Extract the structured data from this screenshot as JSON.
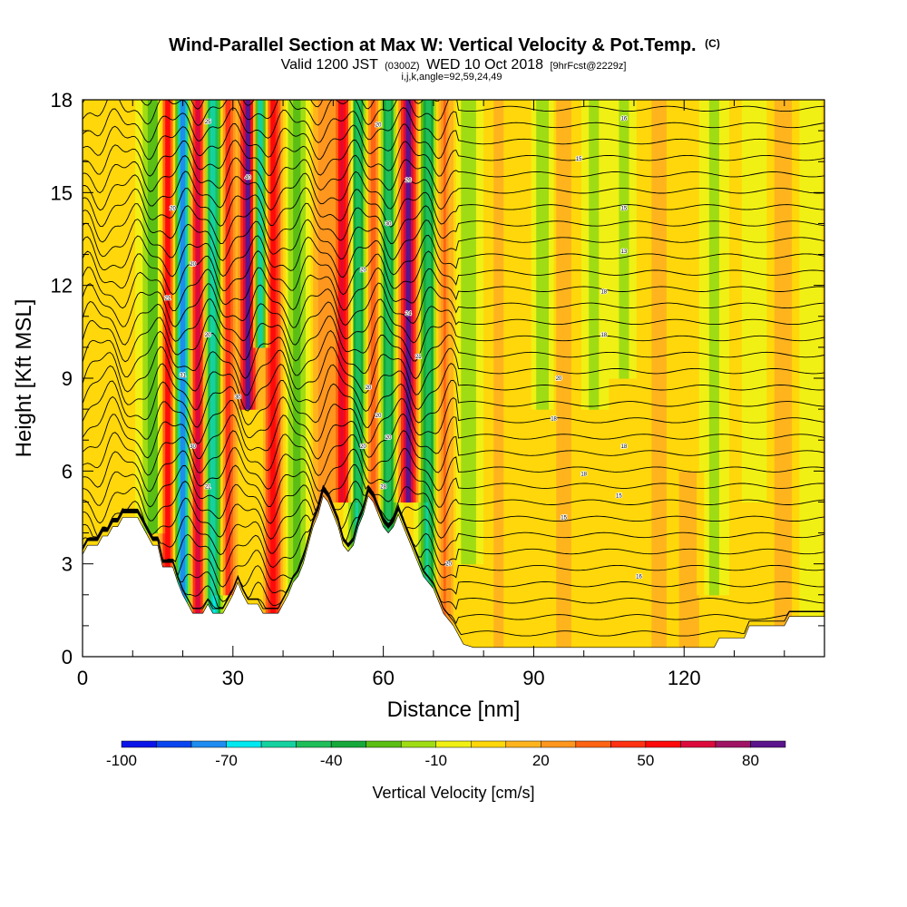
{
  "chart_data": {
    "type": "heatmap",
    "title": "Wind-Parallel Section at Max W: Vertical Velocity & Pot.Temp.",
    "title_mark": "(C)",
    "subtitle": {
      "prefix": "Valid 1200 JST",
      "zulu": "(0300Z)",
      "date": "WED 10 Oct 2018",
      "forecast": "[9hrFcst@2229z]"
    },
    "subtitle2": "i,j,k,angle=92,59,24,49",
    "xlabel": "Distance [nm]",
    "ylabel": "Height [Kft MSL]",
    "xlim": [
      0,
      148
    ],
    "ylim": [
      0,
      18
    ],
    "x_ticks": [
      "0",
      "30",
      "60",
      "90",
      "120"
    ],
    "y_ticks": [
      "0",
      "3",
      "6",
      "9",
      "12",
      "15",
      "18"
    ],
    "colorbar": {
      "label": "Vertical Velocity [cm/s]",
      "ticks": [
        "-100",
        "-70",
        "-40",
        "-10",
        "20",
        "50",
        "80"
      ],
      "bounds": [
        -100,
        90
      ],
      "colors": [
        "#0a14e8",
        "#0a46f0",
        "#1e8cf0",
        "#00e8f0",
        "#14d2a0",
        "#1ebe5a",
        "#16a83a",
        "#5abe14",
        "#a0dc14",
        "#f0f014",
        "#ffd70a",
        "#ffb41e",
        "#ff961e",
        "#ff6414",
        "#ff3214",
        "#ff0a0a",
        "#dc0a3c",
        "#a01464",
        "#5a148c"
      ]
    },
    "contour_field": "Potential Temperature",
    "contour_labels": [
      {
        "x": 25,
        "y": 17.3,
        "text": "25"
      },
      {
        "x": 18,
        "y": 14.5,
        "text": "20"
      },
      {
        "x": 33,
        "y": 15.5,
        "text": "40"
      },
      {
        "x": 22,
        "y": 12.7,
        "text": "20"
      },
      {
        "x": 17,
        "y": 11.6,
        "text": "21"
      },
      {
        "x": 25,
        "y": 10.4,
        "text": "20"
      },
      {
        "x": 20,
        "y": 9.1,
        "text": "31"
      },
      {
        "x": 31,
        "y": 8.4,
        "text": "30"
      },
      {
        "x": 22,
        "y": 6.8,
        "text": "30"
      },
      {
        "x": 25,
        "y": 5.5,
        "text": "21"
      },
      {
        "x": 59,
        "y": 17.2,
        "text": "20"
      },
      {
        "x": 65,
        "y": 15.4,
        "text": "26"
      },
      {
        "x": 61,
        "y": 14.0,
        "text": "30"
      },
      {
        "x": 56,
        "y": 12.5,
        "text": "20"
      },
      {
        "x": 65,
        "y": 11.1,
        "text": "24"
      },
      {
        "x": 67,
        "y": 9.7,
        "text": "21"
      },
      {
        "x": 57,
        "y": 8.7,
        "text": "20"
      },
      {
        "x": 59,
        "y": 7.8,
        "text": "20"
      },
      {
        "x": 61,
        "y": 7.1,
        "text": "20"
      },
      {
        "x": 56,
        "y": 6.8,
        "text": "20"
      },
      {
        "x": 60,
        "y": 5.5,
        "text": "28"
      },
      {
        "x": 64,
        "y": 3.9,
        "text": "21"
      },
      {
        "x": 73,
        "y": 3.0,
        "text": "20"
      },
      {
        "x": 108,
        "y": 17.4,
        "text": "16"
      },
      {
        "x": 99,
        "y": 16.1,
        "text": "15"
      },
      {
        "x": 108,
        "y": 14.5,
        "text": "15"
      },
      {
        "x": 108,
        "y": 13.1,
        "text": "13"
      },
      {
        "x": 104,
        "y": 11.8,
        "text": "18"
      },
      {
        "x": 104,
        "y": 10.4,
        "text": "18"
      },
      {
        "x": 95,
        "y": 9.0,
        "text": "20"
      },
      {
        "x": 94,
        "y": 7.7,
        "text": "18"
      },
      {
        "x": 108,
        "y": 6.8,
        "text": "18"
      },
      {
        "x": 100,
        "y": 5.9,
        "text": "18"
      },
      {
        "x": 107,
        "y": 5.2,
        "text": "15"
      },
      {
        "x": 96,
        "y": 4.5,
        "text": "15"
      },
      {
        "x": 111,
        "y": 2.6,
        "text": "16"
      }
    ],
    "terrain_profile_kft": [
      [
        0,
        3.3
      ],
      [
        1,
        3.6
      ],
      [
        3,
        3.6
      ],
      [
        4,
        3.9
      ],
      [
        5,
        3.9
      ],
      [
        6,
        4.2
      ],
      [
        7,
        4.2
      ],
      [
        8,
        4.5
      ],
      [
        11,
        4.5
      ],
      [
        12,
        4.2
      ],
      [
        13,
        3.9
      ],
      [
        14,
        3.6
      ],
      [
        15,
        3.6
      ],
      [
        16,
        2.9
      ],
      [
        18,
        2.9
      ],
      [
        19,
        2.4
      ],
      [
        20,
        2.0
      ],
      [
        21,
        1.7
      ],
      [
        22,
        1.4
      ],
      [
        24,
        1.4
      ],
      [
        25,
        1.7
      ],
      [
        26,
        1.4
      ],
      [
        28,
        1.4
      ],
      [
        29,
        1.7
      ],
      [
        30,
        2.0
      ],
      [
        31,
        2.4
      ],
      [
        32,
        2.0
      ],
      [
        33,
        1.7
      ],
      [
        35,
        1.7
      ],
      [
        36,
        1.4
      ],
      [
        39,
        1.4
      ],
      [
        40,
        1.7
      ],
      [
        41,
        2.0
      ],
      [
        42,
        2.4
      ],
      [
        43,
        2.6
      ],
      [
        44,
        3.0
      ],
      [
        45,
        3.6
      ],
      [
        46,
        4.2
      ],
      [
        47,
        4.6
      ],
      [
        48,
        5.2
      ],
      [
        49,
        5.0
      ],
      [
        50,
        4.6
      ],
      [
        51,
        4.2
      ],
      [
        52,
        3.6
      ],
      [
        53,
        3.4
      ],
      [
        54,
        3.6
      ],
      [
        55,
        4.2
      ],
      [
        56,
        4.6
      ],
      [
        57,
        5.2
      ],
      [
        58,
        5.0
      ],
      [
        59,
        4.6
      ],
      [
        60,
        4.2
      ],
      [
        61,
        4.0
      ],
      [
        62,
        4.2
      ],
      [
        63,
        4.6
      ],
      [
        64,
        4.2
      ],
      [
        65,
        3.8
      ],
      [
        66,
        3.4
      ],
      [
        67,
        3.0
      ],
      [
        68,
        2.6
      ],
      [
        70,
        2.2
      ],
      [
        71,
        1.8
      ],
      [
        72,
        1.4
      ],
      [
        74,
        1.0
      ],
      [
        75,
        0.7
      ],
      [
        76,
        0.4
      ],
      [
        78,
        0.3
      ],
      [
        126,
        0.3
      ],
      [
        127,
        0.6
      ],
      [
        132,
        0.6
      ],
      [
        133,
        1.0
      ],
      [
        140,
        1.0
      ],
      [
        141,
        1.3
      ],
      [
        148,
        1.3
      ]
    ]
  }
}
